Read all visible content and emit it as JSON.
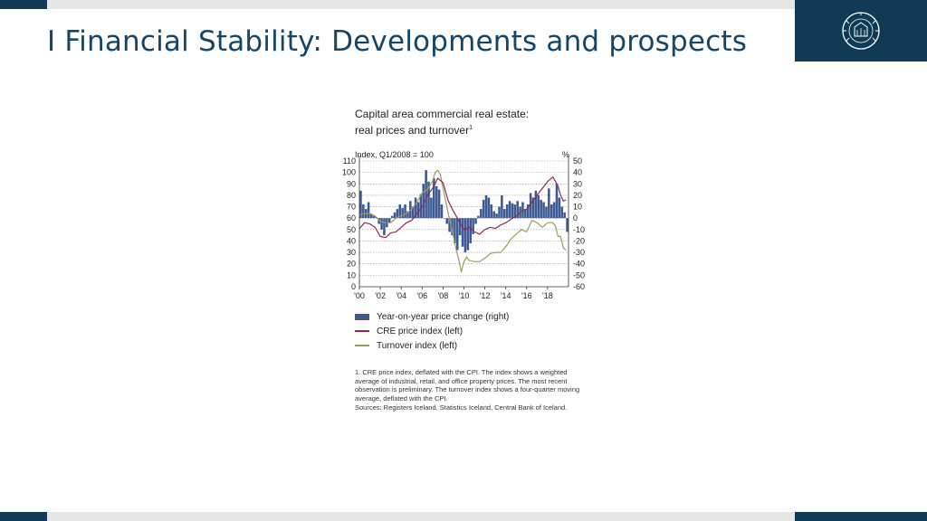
{
  "slide": {
    "title": "I Financial Stability: Developments and prospects"
  },
  "colors": {
    "brand_navy": "#0e3a55",
    "title_blue": "#14466b",
    "bars": "#3d5a93",
    "cre_line": "#8c2a5c",
    "turnover_line": "#a39a5c"
  },
  "logo": {
    "icon": "central-bank-seal-icon",
    "text": "SEÐLABANKI ÍSLANDS"
  },
  "chart": {
    "title_line1": "Capital area commercial real estate:",
    "title_line2": "real prices and turnover",
    "title_superscript": "1",
    "left_axis_label": "Index, Q1/2008 = 100",
    "right_axis_label": "%",
    "legend": [
      {
        "label": "Year-on-year price change (right)",
        "swatch": "bar"
      },
      {
        "label": "CRE price index (left)",
        "swatch": "line-cre"
      },
      {
        "label": "Turnover index (left)",
        "swatch": "line-turn"
      }
    ],
    "footnote": "1. CRE price index, deflated with the CPI. The index shows a weighted average of industrial, retail, and office property prices. The most recent observation is preliminary. The turnover index shows a four-quarter moving average, deflated with the CPI.",
    "sources": "Sources: Registers Iceland, Statistics Iceland, Central Bank of Iceland."
  },
  "chart_data": {
    "type": "bar",
    "title": "Capital area commercial real estate: real prices and turnover",
    "x_tick_labels": [
      "'00",
      "'02",
      "'04",
      "'06",
      "'08",
      "'10",
      "'12",
      "'14",
      "'16",
      "'18"
    ],
    "x_tick_years": [
      2000,
      2002,
      2004,
      2006,
      2008,
      2010,
      2012,
      2014,
      2016,
      2018
    ],
    "x_range": [
      2000,
      2020
    ],
    "left_axis": {
      "label": "Index, Q1/2008 = 100",
      "min": 0,
      "max": 110,
      "ticks": [
        0,
        10,
        20,
        30,
        40,
        50,
        60,
        70,
        80,
        90,
        100,
        110
      ]
    },
    "right_axis": {
      "label": "%",
      "min": -60,
      "max": 50,
      "ticks": [
        -60,
        -50,
        -40,
        -30,
        -20,
        -10,
        0,
        10,
        20,
        30,
        40,
        50
      ]
    },
    "grid": "horizontal dotted",
    "legend_position": "below",
    "series": [
      {
        "name": "Year-on-year price change (right)",
        "type": "bar",
        "axis": "right",
        "x": [
          2000.0,
          2000.25,
          2000.5,
          2000.75,
          2001.0,
          2001.25,
          2001.5,
          2001.75,
          2002.0,
          2002.25,
          2002.5,
          2002.75,
          2003.0,
          2003.25,
          2003.5,
          2003.75,
          2004.0,
          2004.25,
          2004.5,
          2004.75,
          2005.0,
          2005.25,
          2005.5,
          2005.75,
          2006.0,
          2006.25,
          2006.5,
          2006.75,
          2007.0,
          2007.25,
          2007.5,
          2007.75,
          2008.0,
          2008.25,
          2008.5,
          2008.75,
          2009.0,
          2009.25,
          2009.5,
          2009.75,
          2010.0,
          2010.25,
          2010.5,
          2010.75,
          2011.0,
          2011.25,
          2011.5,
          2011.75,
          2012.0,
          2012.25,
          2012.5,
          2012.75,
          2013.0,
          2013.25,
          2013.5,
          2013.75,
          2014.0,
          2014.25,
          2014.5,
          2014.75,
          2015.0,
          2015.25,
          2015.5,
          2015.75,
          2016.0,
          2016.25,
          2016.5,
          2016.75,
          2017.0,
          2017.25,
          2017.5,
          2017.75,
          2018.0,
          2018.25,
          2018.5,
          2018.75,
          2019.0,
          2019.25,
          2019.5,
          2019.75
        ],
        "values": [
          24,
          12,
          8,
          14,
          4,
          2,
          1,
          -5,
          -10,
          -15,
          -8,
          -4,
          2,
          5,
          8,
          12,
          9,
          12,
          6,
          15,
          10,
          18,
          14,
          21,
          30,
          42,
          32,
          18,
          35,
          28,
          25,
          12,
          0,
          -5,
          -12,
          -15,
          -22,
          -28,
          -15,
          -25,
          -30,
          -28,
          -22,
          -14,
          -5,
          2,
          8,
          16,
          20,
          18,
          12,
          6,
          4,
          10,
          20,
          8,
          12,
          15,
          13,
          12,
          15,
          10,
          14,
          8,
          12,
          22,
          18,
          24,
          20,
          16,
          14,
          10,
          26,
          12,
          14,
          30,
          18,
          10,
          5,
          -12
        ],
        "bar_width": 0.22
      },
      {
        "name": "CRE price index (left)",
        "type": "line",
        "axis": "left",
        "x": [
          2000.0,
          2000.5,
          2001.0,
          2001.5,
          2002.0,
          2002.5,
          2003.0,
          2003.5,
          2004.0,
          2004.5,
          2005.0,
          2005.5,
          2006.0,
          2006.5,
          2007.0,
          2007.5,
          2008.0,
          2008.5,
          2009.0,
          2009.5,
          2010.0,
          2010.5,
          2011.0,
          2011.5,
          2012.0,
          2012.5,
          2013.0,
          2013.5,
          2014.0,
          2014.5,
          2015.0,
          2015.5,
          2016.0,
          2016.5,
          2017.0,
          2017.5,
          2018.0,
          2018.5,
          2018.75,
          2019.0,
          2019.25,
          2019.5,
          2019.75
        ],
        "values": [
          51,
          56,
          55,
          52,
          44,
          43,
          47,
          48,
          52,
          56,
          58,
          64,
          70,
          80,
          86,
          95,
          91,
          75,
          66,
          58,
          50,
          52,
          48,
          46,
          50,
          52,
          51,
          54,
          56,
          59,
          62,
          66,
          68,
          74,
          80,
          86,
          92,
          96,
          92,
          88,
          80,
          75,
          76
        ]
      },
      {
        "name": "Turnover index (left)",
        "type": "line",
        "axis": "left",
        "x": [
          2000.0,
          2000.5,
          2001.0,
          2001.5,
          2002.0,
          2002.5,
          2003.0,
          2003.5,
          2004.0,
          2004.5,
          2005.0,
          2005.5,
          2006.0,
          2006.5,
          2007.0,
          2007.25,
          2007.5,
          2007.75,
          2008.0,
          2008.5,
          2009.0,
          2009.25,
          2009.5,
          2009.75,
          2010.0,
          2010.25,
          2010.5,
          2011.0,
          2011.5,
          2012.0,
          2012.5,
          2013.0,
          2013.5,
          2014.0,
          2014.5,
          2015.0,
          2015.5,
          2016.0,
          2016.5,
          2017.0,
          2017.5,
          2018.0,
          2018.5,
          2018.75,
          2019.0,
          2019.25,
          2019.5,
          2019.75
        ],
        "values": [
          63,
          64,
          64,
          62,
          57,
          56,
          56,
          60,
          62,
          64,
          68,
          74,
          82,
          85,
          92,
          100,
          102,
          98,
          86,
          64,
          44,
          33,
          24,
          13,
          22,
          26,
          23,
          22,
          22,
          25,
          29,
          30,
          30,
          35,
          42,
          46,
          50,
          48,
          58,
          56,
          52,
          56,
          56,
          53,
          44,
          44,
          34,
          32
        ]
      }
    ]
  }
}
